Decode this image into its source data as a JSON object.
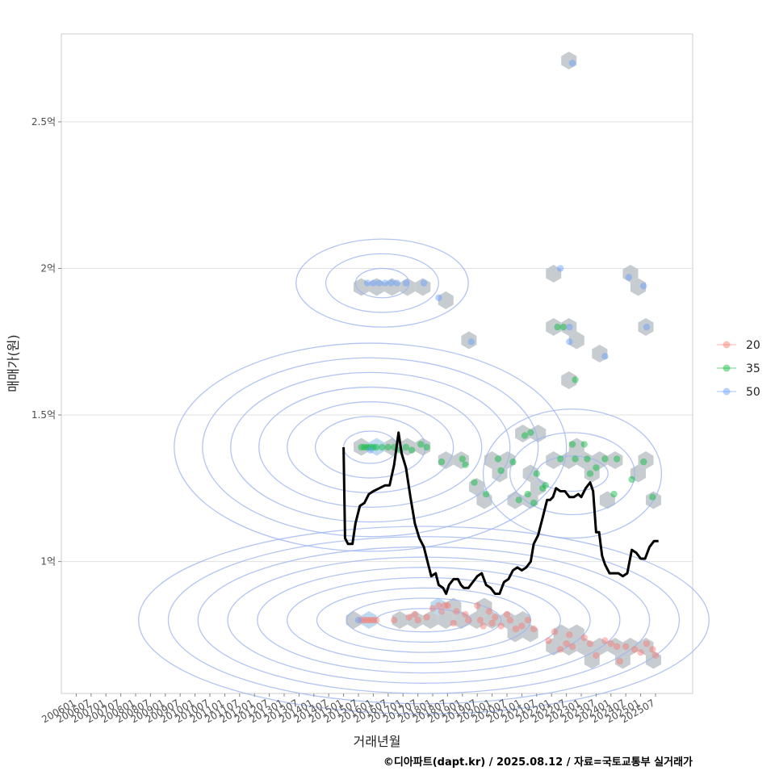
{
  "chart_data": {
    "type": "scatter",
    "title": "",
    "xlabel": "거래년월",
    "ylabel": "매매가(원)",
    "credit": "©디아파트(dapt.kr) / 2025.08.12 / 자료=국토교통부 실거래가",
    "ylim": [
      0.55,
      2.8
    ],
    "xlim": [
      2005.5,
      2026.75
    ],
    "y_ticks": [
      {
        "value": 1.0,
        "label": "1억"
      },
      {
        "value": 1.5,
        "label": "1.5억"
      },
      {
        "value": 2.0,
        "label": "2억"
      },
      {
        "value": 2.5,
        "label": "2.5억"
      }
    ],
    "x_tick_labels": [
      "200601",
      "200607",
      "200701",
      "200707",
      "200801",
      "200807",
      "200901",
      "200907",
      "201001",
      "201007",
      "201101",
      "201107",
      "201201",
      "201207",
      "201301",
      "201307",
      "201401",
      "201407",
      "201501",
      "201507",
      "201601",
      "201607",
      "201701",
      "201707",
      "201801",
      "201807",
      "201901",
      "201907",
      "202001",
      "202007",
      "202101",
      "202107",
      "202201",
      "202207",
      "202301",
      "202307",
      "202401",
      "202407",
      "202501",
      "202507"
    ],
    "legend": {
      "title": "",
      "position": "right",
      "entries": [
        "20",
        "35",
        "50"
      ]
    },
    "series_colors": {
      "20": "#f8766d",
      "35": "#00ba38",
      "50": "#619cff"
    },
    "series": [
      {
        "name": "20",
        "points": [
          [
            2015.6,
            0.8
          ],
          [
            2015.7,
            0.8
          ],
          [
            2015.8,
            0.8
          ],
          [
            2015.9,
            0.8
          ],
          [
            2016.0,
            0.8
          ],
          [
            2016.1,
            0.8
          ],
          [
            2016.7,
            0.8
          ],
          [
            2017.2,
            0.81
          ],
          [
            2017.4,
            0.82
          ],
          [
            2017.5,
            0.8
          ],
          [
            2017.8,
            0.81
          ],
          [
            2018.0,
            0.84
          ],
          [
            2018.2,
            0.85
          ],
          [
            2018.3,
            0.83
          ],
          [
            2018.4,
            0.85
          ],
          [
            2018.5,
            0.85
          ],
          [
            2018.7,
            0.79
          ],
          [
            2018.8,
            0.83
          ],
          [
            2019.1,
            0.82
          ],
          [
            2019.2,
            0.8
          ],
          [
            2019.5,
            0.85
          ],
          [
            2019.6,
            0.8
          ],
          [
            2019.7,
            0.78
          ],
          [
            2019.9,
            0.83
          ],
          [
            2020.0,
            0.79
          ],
          [
            2020.1,
            0.81
          ],
          [
            2020.3,
            0.78
          ],
          [
            2020.5,
            0.82
          ],
          [
            2020.6,
            0.8
          ],
          [
            2020.8,
            0.77
          ],
          [
            2021.0,
            0.78
          ],
          [
            2021.2,
            0.8
          ],
          [
            2021.4,
            0.77
          ],
          [
            2021.9,
            0.73
          ],
          [
            2022.1,
            0.76
          ],
          [
            2022.3,
            0.7
          ],
          [
            2022.5,
            0.72
          ],
          [
            2022.6,
            0.75
          ],
          [
            2022.7,
            0.71
          ],
          [
            2023.1,
            0.74
          ],
          [
            2023.3,
            0.72
          ],
          [
            2023.5,
            0.68
          ],
          [
            2023.8,
            0.73
          ],
          [
            2024.0,
            0.72
          ],
          [
            2024.2,
            0.71
          ],
          [
            2024.3,
            0.66
          ],
          [
            2024.5,
            0.71
          ],
          [
            2024.8,
            0.7
          ],
          [
            2025.0,
            0.69
          ],
          [
            2025.2,
            0.72
          ],
          [
            2025.4,
            0.7
          ],
          [
            2025.5,
            0.68
          ]
        ]
      },
      {
        "name": "35",
        "points": [
          [
            2015.6,
            1.39
          ],
          [
            2015.7,
            1.39
          ],
          [
            2015.8,
            1.39
          ],
          [
            2015.9,
            1.39
          ],
          [
            2016.0,
            1.39
          ],
          [
            2016.1,
            1.39
          ],
          [
            2016.3,
            1.39
          ],
          [
            2016.5,
            1.39
          ],
          [
            2016.7,
            1.39
          ],
          [
            2016.9,
            1.38
          ],
          [
            2017.1,
            1.39
          ],
          [
            2017.3,
            1.38
          ],
          [
            2017.6,
            1.4
          ],
          [
            2017.8,
            1.39
          ],
          [
            2018.3,
            1.34
          ],
          [
            2019.0,
            1.35
          ],
          [
            2019.1,
            1.33
          ],
          [
            2019.4,
            1.27
          ],
          [
            2019.8,
            1.23
          ],
          [
            2020.2,
            1.35
          ],
          [
            2020.3,
            1.31
          ],
          [
            2020.7,
            1.34
          ],
          [
            2020.9,
            1.21
          ],
          [
            2021.1,
            1.43
          ],
          [
            2021.3,
            1.44
          ],
          [
            2021.2,
            1.23
          ],
          [
            2021.4,
            1.2
          ],
          [
            2021.5,
            1.3
          ],
          [
            2021.7,
            1.25
          ],
          [
            2021.8,
            1.26
          ],
          [
            2022.2,
            1.8
          ],
          [
            2022.4,
            1.8
          ],
          [
            2022.3,
            1.35
          ],
          [
            2022.8,
            1.62
          ],
          [
            2022.7,
            1.4
          ],
          [
            2022.8,
            1.35
          ],
          [
            2023.1,
            1.4
          ],
          [
            2023.2,
            1.35
          ],
          [
            2023.3,
            1.3
          ],
          [
            2023.5,
            1.32
          ],
          [
            2023.8,
            1.35
          ],
          [
            2024.2,
            1.35
          ],
          [
            2024.1,
            1.23
          ],
          [
            2024.7,
            1.28
          ],
          [
            2025.1,
            1.34
          ],
          [
            2025.4,
            1.22
          ]
        ]
      },
      {
        "name": "50",
        "points": [
          [
            2015.8,
            1.95
          ],
          [
            2016.0,
            1.95
          ],
          [
            2016.2,
            1.95
          ],
          [
            2016.4,
            1.95
          ],
          [
            2016.6,
            1.95
          ],
          [
            2016.8,
            1.95
          ],
          [
            2017.1,
            1.95
          ],
          [
            2017.7,
            1.95
          ],
          [
            2018.2,
            1.9
          ],
          [
            2019.3,
            1.75
          ],
          [
            2022.3,
            2.0
          ],
          [
            2022.6,
            1.8
          ],
          [
            2022.6,
            1.75
          ],
          [
            2022.7,
            2.7
          ],
          [
            2023.8,
            1.7
          ],
          [
            2024.6,
            1.97
          ],
          [
            2025.1,
            1.94
          ],
          [
            2025.2,
            1.8
          ],
          [
            2015.5,
            0.8
          ],
          [
            2015.9,
            1.38
          ]
        ]
      }
    ],
    "median_line": {
      "name": "median",
      "color": "#000000",
      "points": [
        [
          2015.0,
          1.39
        ],
        [
          2015.05,
          1.08
        ],
        [
          2015.15,
          1.06
        ],
        [
          2015.3,
          1.06
        ],
        [
          2015.4,
          1.13
        ],
        [
          2015.55,
          1.19
        ],
        [
          2015.7,
          1.2
        ],
        [
          2015.85,
          1.23
        ],
        [
          2016.0,
          1.24
        ],
        [
          2016.2,
          1.25
        ],
        [
          2016.4,
          1.26
        ],
        [
          2016.55,
          1.26
        ],
        [
          2016.7,
          1.33
        ],
        [
          2016.85,
          1.44
        ],
        [
          2016.95,
          1.37
        ],
        [
          2017.1,
          1.32
        ],
        [
          2017.25,
          1.22
        ],
        [
          2017.4,
          1.13
        ],
        [
          2017.55,
          1.08
        ],
        [
          2017.7,
          1.05
        ],
        [
          2017.85,
          0.99
        ],
        [
          2017.95,
          0.95
        ],
        [
          2018.1,
          0.96
        ],
        [
          2018.2,
          0.92
        ],
        [
          2018.35,
          0.91
        ],
        [
          2018.45,
          0.89
        ],
        [
          2018.55,
          0.92
        ],
        [
          2018.7,
          0.94
        ],
        [
          2018.85,
          0.94
        ],
        [
          2018.95,
          0.92
        ],
        [
          2019.05,
          0.91
        ],
        [
          2019.2,
          0.91
        ],
        [
          2019.35,
          0.93
        ],
        [
          2019.5,
          0.95
        ],
        [
          2019.65,
          0.96
        ],
        [
          2019.8,
          0.92
        ],
        [
          2019.95,
          0.91
        ],
        [
          2020.1,
          0.89
        ],
        [
          2020.25,
          0.89
        ],
        [
          2020.4,
          0.93
        ],
        [
          2020.55,
          0.94
        ],
        [
          2020.7,
          0.97
        ],
        [
          2020.85,
          0.98
        ],
        [
          2021.0,
          0.97
        ],
        [
          2021.15,
          0.98
        ],
        [
          2021.3,
          1.0
        ],
        [
          2021.4,
          1.06
        ],
        [
          2021.55,
          1.09
        ],
        [
          2021.7,
          1.15
        ],
        [
          2021.85,
          1.21
        ],
        [
          2021.95,
          1.21
        ],
        [
          2022.05,
          1.22
        ],
        [
          2022.15,
          1.25
        ],
        [
          2022.3,
          1.24
        ],
        [
          2022.45,
          1.24
        ],
        [
          2022.6,
          1.22
        ],
        [
          2022.75,
          1.22
        ],
        [
          2022.9,
          1.23
        ],
        [
          2023.0,
          1.22
        ],
        [
          2023.15,
          1.25
        ],
        [
          2023.3,
          1.27
        ],
        [
          2023.4,
          1.24
        ],
        [
          2023.5,
          1.1
        ],
        [
          2023.6,
          1.1
        ],
        [
          2023.7,
          1.02
        ],
        [
          2023.8,
          0.99
        ],
        [
          2023.95,
          0.96
        ],
        [
          2024.1,
          0.96
        ],
        [
          2024.25,
          0.96
        ],
        [
          2024.4,
          0.95
        ],
        [
          2024.55,
          0.96
        ],
        [
          2024.7,
          1.04
        ],
        [
          2024.85,
          1.03
        ],
        [
          2025.0,
          1.01
        ],
        [
          2025.15,
          1.01
        ],
        [
          2025.3,
          1.05
        ],
        [
          2025.45,
          1.07
        ],
        [
          2025.6,
          1.07
        ]
      ]
    }
  }
}
